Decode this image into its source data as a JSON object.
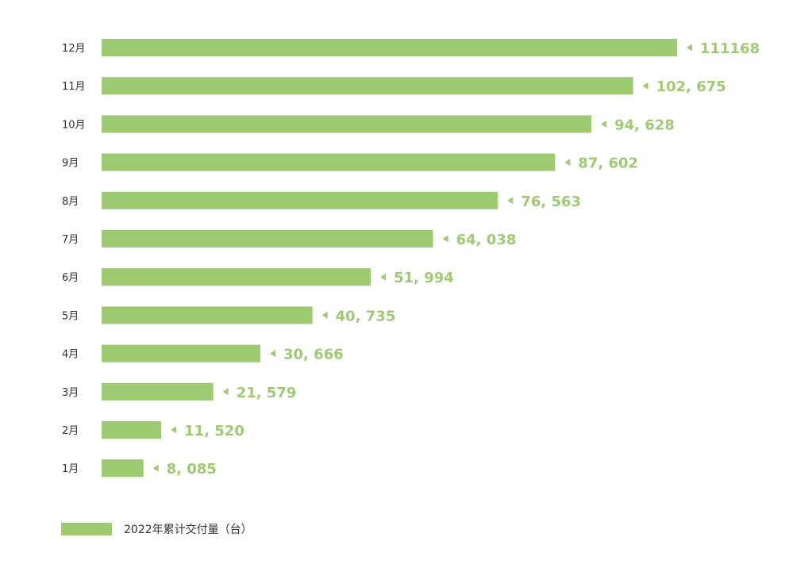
{
  "chart_data": {
    "type": "bar",
    "orientation": "horizontal",
    "categories": [
      "12月",
      "11月",
      "10月",
      "9月",
      "8月",
      "7月",
      "6月",
      "5月",
      "4月",
      "3月",
      "2月",
      "1月"
    ],
    "values": [
      111168,
      102675,
      94628,
      87602,
      76563,
      64038,
      51994,
      40735,
      30666,
      21579,
      11520,
      8085
    ],
    "value_labels": [
      "111168",
      "102, 675",
      "94, 628",
      "87, 602",
      "76, 563",
      "64, 038",
      "51, 994",
      "40, 735",
      "30, 666",
      "21, 579",
      "11, 520",
      "8, 085"
    ],
    "marker_icon": "left-triangle-icon",
    "xlim": [
      0,
      111168
    ],
    "grid": false,
    "legend": {
      "label": "2022年累计交付量（台）",
      "placement": "bottom-left"
    },
    "colors": {
      "bar": "#9ecb72",
      "label": "#9ecb72",
      "text": "#333333"
    }
  }
}
